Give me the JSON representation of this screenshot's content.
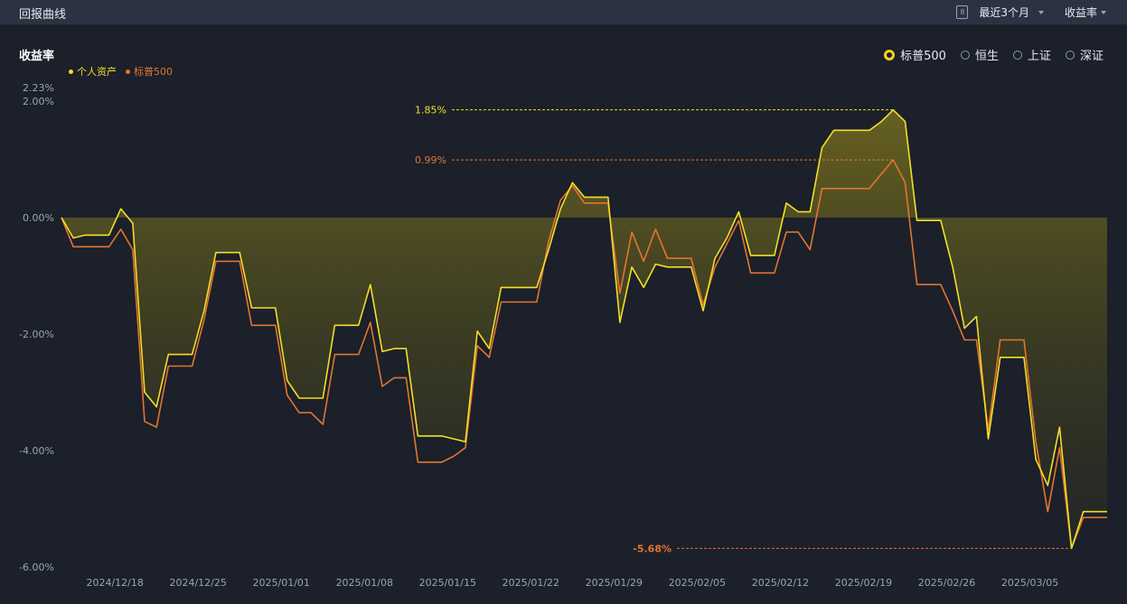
{
  "header": {
    "title": "回报曲线",
    "period": "最近3个月",
    "metric": "收益率",
    "calendar_icon_text": "8"
  },
  "chart_header": {
    "ylabel": "收益率"
  },
  "benchmarks": [
    {
      "label": "标普500",
      "selected": true
    },
    {
      "label": "恒生",
      "selected": false
    },
    {
      "label": "上证",
      "selected": false
    },
    {
      "label": "深证",
      "selected": false
    }
  ],
  "colors": {
    "personal": "#f3df27",
    "benchmark": "#e4742f",
    "fill": "#5c5a1e",
    "grid": "#2a313d"
  },
  "chart_data": {
    "type": "line",
    "ylim": [
      -6.0,
      2.23
    ],
    "yticks": [
      "2.23%",
      "2.00%",
      "0.00%",
      "-2.00%",
      "-4.00%",
      "-6.00%"
    ],
    "ytick_values": [
      2.23,
      2.0,
      0.0,
      -2.0,
      -4.0,
      -6.0
    ],
    "xticks": [
      "2024/12/18",
      "2024/12/25",
      "2025/01/01",
      "2025/01/08",
      "2025/01/15",
      "2025/01/22",
      "2025/01/29",
      "2025/02/05",
      "2025/02/12",
      "2025/02/19",
      "2025/02/26",
      "2025/03/05"
    ],
    "xtick_positions": [
      4.5,
      11.5,
      18.5,
      25.5,
      32.5,
      39.5,
      46.5,
      53.5,
      60.5,
      67.5,
      74.5,
      81.5
    ],
    "x_count": 89,
    "series": [
      {
        "name": "个人资产",
        "color": "#f3df27",
        "values": [
          0.0,
          -0.35,
          -0.3,
          -0.3,
          -0.3,
          0.15,
          -0.1,
          -3.0,
          -3.25,
          -2.35,
          -2.35,
          -2.35,
          -1.6,
          -0.6,
          -0.6,
          -0.6,
          -1.55,
          -1.55,
          -1.55,
          -2.8,
          -3.1,
          -3.1,
          -3.1,
          -1.85,
          -1.85,
          -1.85,
          -1.15,
          -2.3,
          -2.25,
          -2.25,
          -3.75,
          -3.75,
          -3.75,
          -3.8,
          -3.85,
          -1.95,
          -2.25,
          -1.2,
          -1.2,
          -1.2,
          -1.2,
          -0.55,
          0.15,
          0.6,
          0.35,
          0.35,
          0.35,
          -1.8,
          -0.85,
          -1.2,
          -0.8,
          -0.85,
          -0.85,
          -0.85,
          -1.6,
          -0.7,
          -0.35,
          0.1,
          -0.65,
          -0.65,
          -0.65,
          0.25,
          0.1,
          0.1,
          1.2,
          1.5,
          1.5,
          1.5,
          1.5,
          1.65,
          1.85,
          1.65,
          -0.05,
          -0.05,
          -0.05,
          -0.85,
          -1.9,
          -1.7,
          -3.8,
          -2.4,
          -2.4,
          -2.4,
          -4.15,
          -4.6,
          -3.6,
          -5.68,
          -5.05,
          -5.05,
          -5.05
        ]
      },
      {
        "name": "标普500",
        "color": "#e4742f",
        "values": [
          0.0,
          -0.5,
          -0.5,
          -0.5,
          -0.5,
          -0.2,
          -0.55,
          -3.5,
          -3.6,
          -2.55,
          -2.55,
          -2.55,
          -1.75,
          -0.75,
          -0.75,
          -0.75,
          -1.85,
          -1.85,
          -1.85,
          -3.05,
          -3.35,
          -3.35,
          -3.55,
          -2.35,
          -2.35,
          -2.35,
          -1.8,
          -2.9,
          -2.75,
          -2.75,
          -4.2,
          -4.2,
          -4.2,
          -4.1,
          -3.95,
          -2.2,
          -2.4,
          -1.45,
          -1.45,
          -1.45,
          -1.45,
          -0.4,
          0.3,
          0.55,
          0.25,
          0.25,
          0.25,
          -1.3,
          -0.25,
          -0.75,
          -0.2,
          -0.7,
          -0.7,
          -0.7,
          -1.5,
          -0.85,
          -0.45,
          -0.05,
          -0.95,
          -0.95,
          -0.95,
          -0.25,
          -0.25,
          -0.55,
          0.5,
          0.5,
          0.5,
          0.5,
          0.5,
          0.75,
          0.99,
          0.6,
          -1.15,
          -1.15,
          -1.15,
          -1.6,
          -2.1,
          -2.1,
          -3.65,
          -2.1,
          -2.1,
          -2.1,
          -3.85,
          -5.05,
          -3.95,
          -5.68,
          -5.15,
          -5.15,
          -5.15
        ]
      }
    ],
    "annotations": [
      {
        "label": "1.85%",
        "value": 1.85,
        "x_index": 70,
        "color": "#f3df27"
      },
      {
        "label": "0.99%",
        "value": 0.99,
        "x_index": 70,
        "color": "#e4742f"
      },
      {
        "label": "-5.68%",
        "value": -5.68,
        "x_index": 85,
        "color": "#e4742f"
      }
    ]
  }
}
